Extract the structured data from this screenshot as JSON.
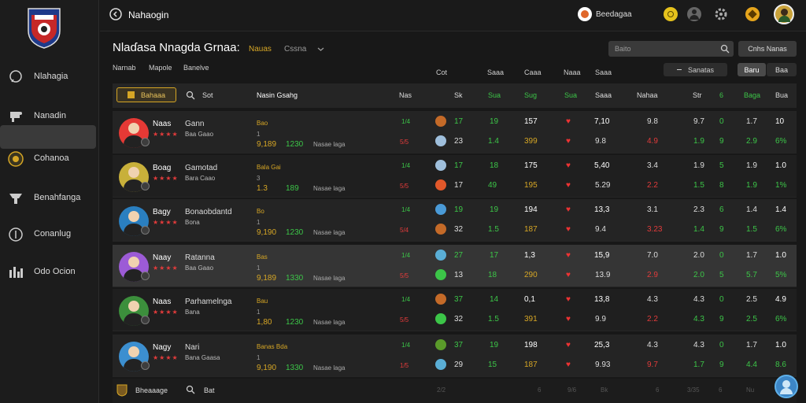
{
  "app": {
    "title": "Nahaogin"
  },
  "sidebar": {
    "items": [
      {
        "label": "Nlahagia",
        "icon": "chat-icon"
      },
      {
        "label": "Nanadin",
        "icon": "player-icon"
      },
      {
        "label": "Cohanoa",
        "icon": "club-icon"
      },
      {
        "label": "Benahfanga",
        "icon": "scout-icon"
      },
      {
        "label": "Conanlug",
        "icon": "shield-icon"
      },
      {
        "label": "Odo Ocion",
        "icon": "stats-icon"
      }
    ]
  },
  "topbar": {
    "user_label": "Beedagaa"
  },
  "header": {
    "title": "Nlaɗasa Nnagda Grnaa:",
    "tag": "Nauas",
    "sub": "Cssna"
  },
  "search": {
    "placeholder": "Baito"
  },
  "buttons": {
    "options": "Cnhs Nanas",
    "filter": "Sanatas",
    "view_1": "Baru",
    "view_2": "Baa"
  },
  "tabs": [
    "Narnab",
    "Mapole",
    "Banelve"
  ],
  "col_groups": [
    "Cot",
    "Saaa",
    "Caaa",
    "Naaa",
    "Saaa"
  ],
  "table": {
    "head_btn": "Bahaaa",
    "head_sort": "Sot",
    "columns": [
      "Nasin Gsahg",
      "Nas",
      "Sk",
      "Sua",
      "Sug",
      "Sua",
      "Saaa",
      "Nahaa",
      "Str",
      "6",
      "Baga",
      "Bua"
    ],
    "rows": [
      {
        "name": "Naas",
        "nation": "Gann",
        "role": "Baa Gaao",
        "pos": "Bao",
        "val": "9,189",
        "val2": "1230",
        "val3": "1",
        "tag": "Nasae laga",
        "g1": "1/4",
        "g2": "5/5",
        "a1": "17",
        "a2": "23",
        "b1": "19",
        "b2": "1.4",
        "c1": "157",
        "c2": "399",
        "d1": "7,10",
        "d2": "9.8",
        "e1": "9.8",
        "e2": "4.9",
        "f1": "9.7",
        "f2": "1.9",
        "h1": "0",
        "h2": "9",
        "i1": "1.7",
        "i2": "2.9",
        "j1": "10",
        "j2": "6%"
      },
      {
        "name": "Boag",
        "nation": "Gamotad",
        "role": "Bara Caao",
        "pos": "Bala Gai",
        "val": "1.3",
        "val2": "189",
        "val3": "3",
        "tag": "Nasae laga",
        "g1": "1/4",
        "g2": "5/5",
        "a1": "17",
        "a2": "17",
        "b1": "18",
        "b2": "49",
        "c1": "175",
        "c2": "195",
        "d1": "5,40",
        "d2": "5.29",
        "e1": "3.4",
        "e2": "2.2",
        "f1": "1.9",
        "f2": "1.5",
        "h1": "5",
        "h2": "8",
        "i1": "1.9",
        "i2": "1.9",
        "j1": "1.0",
        "j2": "1%"
      },
      {
        "name": "Bagy",
        "nation": "Bonaobdantd",
        "role": "Bona",
        "pos": "Bo",
        "val": "9,190",
        "val2": "1230",
        "val3": "1",
        "tag": "Nasae laga",
        "g1": "1/4",
        "g2": "5/4",
        "a1": "19",
        "a2": "32",
        "b1": "19",
        "b2": "1.5",
        "c1": "194",
        "c2": "187",
        "d1": "13,3",
        "d2": "9.4",
        "e1": "3.1",
        "e2": "3.23",
        "f1": "2.3",
        "f2": "1.4",
        "h1": "6",
        "h2": "9",
        "i1": "1.4",
        "i2": "1.5",
        "j1": "1.4",
        "j2": "6%"
      },
      {
        "name": "Naay",
        "nation": "Ratanna",
        "role": "Baa Gaao",
        "pos": "Bas",
        "val": "9,189",
        "val2": "1330",
        "val3": "1",
        "tag": "Nasae laga",
        "g1": "1/4",
        "g2": "5/5",
        "a1": "27",
        "a2": "13",
        "b1": "17",
        "b2": "18",
        "c1": "1,3",
        "c2": "290",
        "d1": "15,9",
        "d2": "13.9",
        "e1": "7.0",
        "e2": "2.9",
        "f1": "2.0",
        "f2": "2.0",
        "h1": "0",
        "h2": "5",
        "i1": "1.7",
        "i2": "5.7",
        "j1": "1.0",
        "j2": "5%"
      },
      {
        "name": "Naas",
        "nation": "Parhamelnga",
        "role": "Bana",
        "pos": "Bau",
        "val": "1,80",
        "val2": "1230",
        "val3": "1",
        "tag": "Nasae laga",
        "g1": "1/4",
        "g2": "5/5",
        "a1": "37",
        "a2": "32",
        "b1": "14",
        "b2": "1.5",
        "c1": "0,1",
        "c2": "391",
        "d1": "13,8",
        "d2": "9.9",
        "e1": "4.3",
        "e2": "2.2",
        "f1": "4.3",
        "f2": "4.3",
        "h1": "0",
        "h2": "9",
        "i1": "2.5",
        "i2": "2.5",
        "j1": "4.9",
        "j2": "6%"
      },
      {
        "name": "Nagy",
        "nation": "Nari",
        "role": "Bana Gaasa",
        "pos": "Banas Bda",
        "val": "9,190",
        "val2": "1330",
        "val3": "1",
        "tag": "Nasae laga",
        "g1": "1/4",
        "g2": "1/5",
        "a1": "37",
        "a2": "29",
        "b1": "19",
        "b2": "15",
        "c1": "198",
        "c2": "187",
        "d1": "25,3",
        "d2": "9.93",
        "e1": "4.3",
        "e2": "9.7",
        "f1": "4.3",
        "f2": "1.7",
        "h1": "0",
        "h2": "9",
        "i1": "1.7",
        "i2": "4.4",
        "j1": "1.0",
        "j2": "8.6"
      }
    ]
  },
  "footer": {
    "label": "Bheaaage",
    "sort": "Bat",
    "cells": [
      "2/2",
      "6",
      "9/6",
      "Bk",
      "6",
      "3/35",
      "Nu",
      "6"
    ]
  },
  "colors": {
    "accent_yellow": "#d6a625",
    "green": "#3cc548",
    "red": "#e23b3b"
  }
}
